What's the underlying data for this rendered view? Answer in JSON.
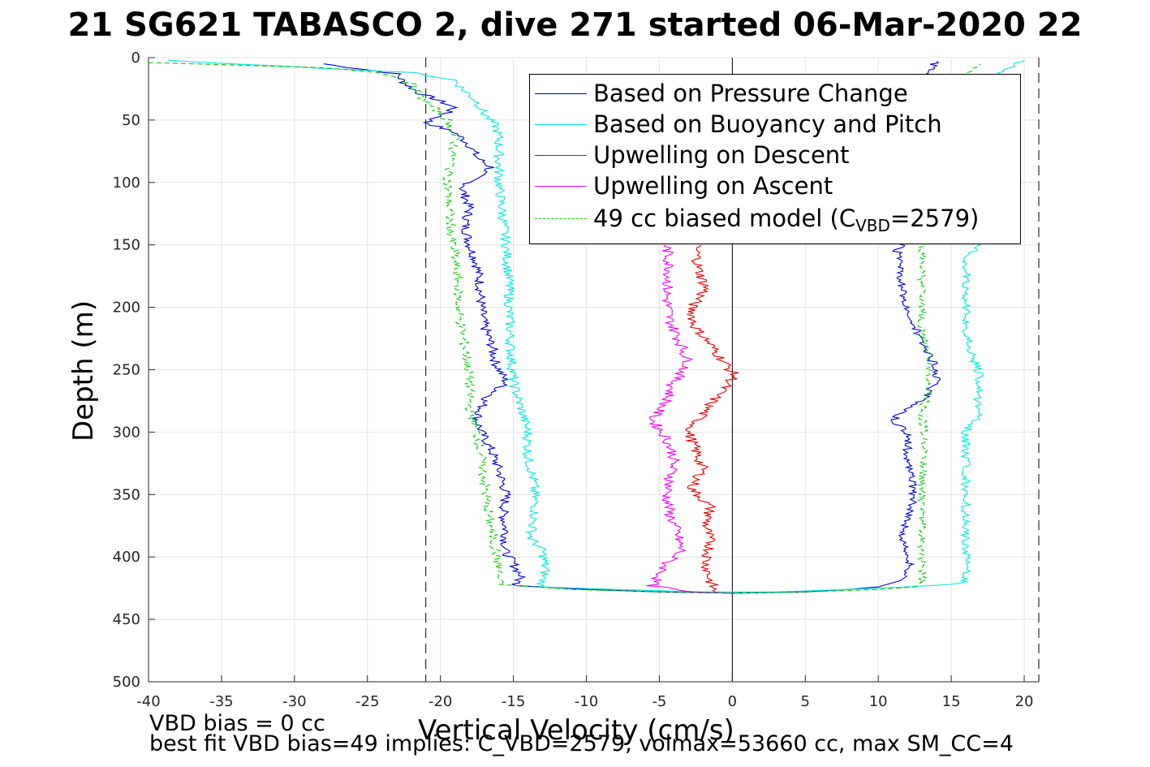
{
  "title": "21 SG621 TABASCO 2, dive 271 started 06-Mar-2020 22",
  "footer": {
    "line1": "VBD bias = 0 cc",
    "line2": "best fit VBD bias=49 implies: C_VBD=2579, volmax=53660 cc, max SM_CC=4"
  },
  "chart_data": {
    "type": "line",
    "xlabel": "Vertical Velocity (cm/s)",
    "ylabel": "Depth (m)",
    "xlim": [
      -40,
      21
    ],
    "ylim": [
      0,
      500
    ],
    "y_reversed": true,
    "grid": true,
    "xticks": [
      "-40",
      "-35",
      "-30",
      "-25",
      "-20",
      "-15",
      "-10",
      "-5",
      "0",
      "5",
      "10",
      "15",
      "20"
    ],
    "yticks": [
      "0",
      "50",
      "100",
      "150",
      "200",
      "250",
      "300",
      "350",
      "400",
      "450",
      "500"
    ],
    "reference_lines": [
      {
        "x": -21,
        "style": "dashed",
        "color": "#000000"
      },
      {
        "x": 0,
        "style": "solid",
        "color": "#000000"
      },
      {
        "x": 21,
        "style": "dashed",
        "color": "#000000"
      }
    ],
    "legend": {
      "placement": "top-right",
      "items": [
        {
          "label": "Based on Pressure Change",
          "color": "#0000cc",
          "style": "solid"
        },
        {
          "label": "Based on Buoyancy and Pitch",
          "color": "#00e6e6",
          "style": "solid"
        },
        {
          "label": "Upwelling on Descent",
          "color": "#dd0000",
          "style": "solid"
        },
        {
          "label": "Upwelling on Ascent",
          "color": "#ee00ee",
          "style": "solid"
        },
        {
          "label_main": "49 cc biased model (C",
          "label_sub": "VBD",
          "label_tail": "=2579)",
          "color": "#00cc00",
          "style": "dashed"
        }
      ]
    },
    "series": [
      {
        "name": "Based on Pressure Change",
        "color": "#0000cc",
        "style": "solid",
        "descent": [
          [
            -28,
            5
          ],
          [
            -23,
            13
          ],
          [
            -22.5,
            20
          ],
          [
            -21.5,
            28
          ],
          [
            -20,
            35
          ],
          [
            -19,
            40
          ],
          [
            -20,
            47
          ],
          [
            -21,
            52
          ],
          [
            -19,
            60
          ],
          [
            -18,
            70
          ],
          [
            -17.5,
            80
          ],
          [
            -16.5,
            88
          ],
          [
            -17.5,
            95
          ],
          [
            -18.5,
            105
          ],
          [
            -18,
            120
          ],
          [
            -18.3,
            135
          ],
          [
            -18,
            150
          ],
          [
            -17.5,
            165
          ],
          [
            -17.3,
            180
          ],
          [
            -17.2,
            200
          ],
          [
            -17,
            215
          ],
          [
            -16.5,
            230
          ],
          [
            -16.2,
            245
          ],
          [
            -15.5,
            260
          ],
          [
            -17,
            275
          ],
          [
            -17.5,
            290
          ],
          [
            -17.2,
            300
          ],
          [
            -16.5,
            315
          ],
          [
            -16,
            330
          ],
          [
            -15.5,
            350
          ],
          [
            -15.7,
            365
          ],
          [
            -15.5,
            380
          ],
          [
            -15.6,
            395
          ],
          [
            -15,
            405
          ],
          [
            -14.5,
            415
          ],
          [
            -14.8,
            423
          ]
        ],
        "turn": [
          [
            -14.8,
            423
          ],
          [
            -10,
            426
          ],
          [
            -5,
            428
          ],
          [
            0,
            429
          ],
          [
            5,
            428
          ],
          [
            8,
            426
          ],
          [
            10,
            424
          ],
          [
            11.5,
            419
          ],
          [
            12,
            415
          ]
        ],
        "ascent": [
          [
            12,
            415
          ],
          [
            12.2,
            400
          ],
          [
            11.5,
            385
          ],
          [
            12,
            370
          ],
          [
            12.5,
            355
          ],
          [
            12.3,
            340
          ],
          [
            12,
            320
          ],
          [
            12,
            300
          ],
          [
            11,
            290
          ],
          [
            12,
            282
          ],
          [
            13,
            275
          ],
          [
            14,
            260
          ],
          [
            13.8,
            245
          ],
          [
            13,
            230
          ],
          [
            12.5,
            215
          ],
          [
            12,
            200
          ],
          [
            11.6,
            185
          ],
          [
            11.5,
            170
          ],
          [
            11.3,
            155
          ],
          [
            12,
            140
          ],
          [
            12,
            100
          ],
          [
            12.5,
            60
          ],
          [
            13,
            30
          ],
          [
            13.5,
            10
          ],
          [
            14,
            3
          ]
        ]
      },
      {
        "name": "Based on Buoyancy and Pitch",
        "color": "#00e6e6",
        "style": "solid",
        "descent": [
          [
            -39,
            2
          ],
          [
            -22,
            12
          ],
          [
            -19,
            18
          ],
          [
            -18.5,
            25
          ],
          [
            -17.5,
            35
          ],
          [
            -17,
            45
          ],
          [
            -16.2,
            55
          ],
          [
            -16,
            65
          ],
          [
            -16,
            80
          ],
          [
            -16,
            100
          ],
          [
            -15.8,
            120
          ],
          [
            -15.5,
            150
          ],
          [
            -15.3,
            180
          ],
          [
            -15.3,
            200
          ],
          [
            -15.2,
            230
          ],
          [
            -15,
            260
          ],
          [
            -14.5,
            280
          ],
          [
            -14,
            300
          ],
          [
            -14,
            320
          ],
          [
            -13.6,
            340
          ],
          [
            -13.5,
            360
          ],
          [
            -13.8,
            385
          ],
          [
            -13,
            395
          ],
          [
            -12.8,
            410
          ],
          [
            -13,
            420
          ],
          [
            -13.2,
            424
          ]
        ],
        "turn": [
          [
            -13.2,
            424
          ],
          [
            -8,
            426
          ],
          [
            -2,
            428
          ],
          [
            3,
            428
          ],
          [
            8,
            426
          ],
          [
            12,
            424
          ],
          [
            15,
            422
          ],
          [
            16,
            420
          ]
        ],
        "ascent": [
          [
            16,
            420
          ],
          [
            16,
            380
          ],
          [
            16,
            340
          ],
          [
            16,
            300
          ],
          [
            17,
            285
          ],
          [
            16.8,
            270
          ],
          [
            17,
            255
          ],
          [
            16.5,
            240
          ],
          [
            16,
            220
          ],
          [
            16,
            200
          ],
          [
            16,
            180
          ],
          [
            16,
            160
          ],
          [
            16.8,
            150
          ],
          [
            17,
            120
          ],
          [
            17,
            90
          ],
          [
            17.5,
            60
          ],
          [
            18,
            30
          ],
          [
            18.5,
            10
          ],
          [
            20,
            2
          ]
        ]
      },
      {
        "name": "Upwelling on Descent",
        "color": "#dd0000",
        "style": "solid",
        "points": [
          [
            -2.5,
            150
          ],
          [
            -2.3,
            170
          ],
          [
            -1.8,
            185
          ],
          [
            -2.8,
            200
          ],
          [
            -2.6,
            215
          ],
          [
            -1.5,
            230
          ],
          [
            -0.5,
            245
          ],
          [
            0.2,
            255
          ],
          [
            -1,
            270
          ],
          [
            -2,
            285
          ],
          [
            -3,
            300
          ],
          [
            -2.5,
            315
          ],
          [
            -2,
            330
          ],
          [
            -2.8,
            345
          ],
          [
            -1.5,
            360
          ],
          [
            -1.8,
            375
          ],
          [
            -1.5,
            390
          ],
          [
            -1.8,
            405
          ],
          [
            -1.5,
            420
          ],
          [
            -1.2,
            428
          ]
        ]
      },
      {
        "name": "Upwelling on Ascent",
        "color": "#ee00ee",
        "style": "solid",
        "points": [
          [
            -4.5,
            150
          ],
          [
            -4.3,
            170
          ],
          [
            -4.5,
            190
          ],
          [
            -4.3,
            210
          ],
          [
            -3.5,
            230
          ],
          [
            -3,
            245
          ],
          [
            -4,
            260
          ],
          [
            -4.5,
            275
          ],
          [
            -5.5,
            290
          ],
          [
            -4.5,
            305
          ],
          [
            -4,
            320
          ],
          [
            -4.2,
            335
          ],
          [
            -4.5,
            350
          ],
          [
            -4.3,
            365
          ],
          [
            -3.8,
            380
          ],
          [
            -3.5,
            395
          ],
          [
            -4.5,
            405
          ],
          [
            -5,
            415
          ],
          [
            -5.5,
            423
          ],
          [
            -3,
            428
          ],
          [
            0,
            429
          ]
        ]
      },
      {
        "name": "49 cc biased model (CVBD=2579)",
        "color": "#00cc00",
        "style": "dashed",
        "descent": [
          [
            -40,
            4
          ],
          [
            -28,
            8
          ],
          [
            -24,
            12
          ],
          [
            -22,
            20
          ],
          [
            -21.5,
            30
          ],
          [
            -20.5,
            40
          ],
          [
            -19.5,
            50
          ],
          [
            -19,
            65
          ],
          [
            -19.2,
            80
          ],
          [
            -19.5,
            100
          ],
          [
            -19.4,
            120
          ],
          [
            -19.3,
            140
          ],
          [
            -19,
            160
          ],
          [
            -18.8,
            180
          ],
          [
            -18.8,
            200
          ],
          [
            -18.5,
            220
          ],
          [
            -18.2,
            240
          ],
          [
            -18,
            260
          ],
          [
            -18,
            280
          ],
          [
            -17.5,
            300
          ],
          [
            -17.2,
            320
          ],
          [
            -17,
            340
          ],
          [
            -16.8,
            360
          ],
          [
            -16.5,
            380
          ],
          [
            -16.2,
            395
          ],
          [
            -16,
            410
          ],
          [
            -16,
            422
          ]
        ],
        "turn": [
          [
            -16,
            422
          ],
          [
            -11,
            426
          ],
          [
            -5,
            428
          ],
          [
            0,
            429
          ],
          [
            5,
            428
          ],
          [
            10,
            426
          ],
          [
            12.5,
            424
          ],
          [
            13,
            420
          ]
        ],
        "ascent": [
          [
            13,
            420
          ],
          [
            13,
            380
          ],
          [
            13,
            340
          ],
          [
            13.2,
            300
          ],
          [
            13,
            285
          ],
          [
            13.5,
            260
          ],
          [
            13.5,
            240
          ],
          [
            13,
            215
          ],
          [
            13,
            190
          ],
          [
            13,
            165
          ],
          [
            13,
            150
          ],
          [
            13.5,
            120
          ],
          [
            13.8,
            90
          ],
          [
            14.5,
            50
          ],
          [
            15.5,
            20
          ],
          [
            17,
            5
          ]
        ]
      }
    ]
  }
}
